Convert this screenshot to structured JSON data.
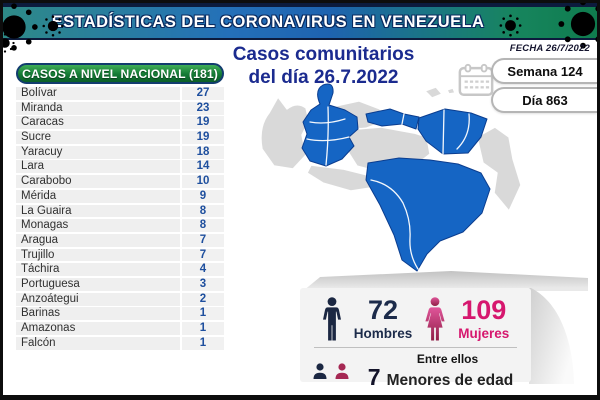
{
  "header": {
    "title": "ESTADÍSTICAS DEL CORONAVIRUS EN VENEZUELA",
    "date_label": "FECHA 26/7/2022"
  },
  "main_title": {
    "line1": "Casos comunitarios",
    "line2": "del día 26.7.2022"
  },
  "side": {
    "week": "Semana 124",
    "day": "Día 863"
  },
  "table": {
    "header": "CASOS A NIVEL NACIONAL  (181)",
    "total": 181,
    "rows": [
      {
        "state": "Bolívar",
        "cases": "27"
      },
      {
        "state": "Miranda",
        "cases": "23"
      },
      {
        "state": "Caracas",
        "cases": "19"
      },
      {
        "state": "Sucre",
        "cases": "19"
      },
      {
        "state": "Yaracuy",
        "cases": "18"
      },
      {
        "state": "Lara",
        "cases": "14"
      },
      {
        "state": "Carabobo",
        "cases": "10"
      },
      {
        "state": "Mérida",
        "cases": "9"
      },
      {
        "state": "La Guaira",
        "cases": "8"
      },
      {
        "state": "Monagas",
        "cases": "8"
      },
      {
        "state": "Aragua",
        "cases": "7"
      },
      {
        "state": "Trujillo",
        "cases": "7"
      },
      {
        "state": "Táchira",
        "cases": "4"
      },
      {
        "state": "Portuguesa",
        "cases": "3"
      },
      {
        "state": "Anzoátegui",
        "cases": "2"
      },
      {
        "state": "Barinas",
        "cases": "1"
      },
      {
        "state": "Amazonas",
        "cases": "1"
      },
      {
        "state": "Falcón",
        "cases": "1"
      }
    ]
  },
  "stats": {
    "men": {
      "value": "72",
      "label": "Hombres"
    },
    "women": {
      "value": "109",
      "label": "Mujeres"
    },
    "minors": {
      "intro": "Entre ellos",
      "value": "7",
      "label": "Menores de edad"
    }
  },
  "colors": {
    "map_blue": "#1565c4",
    "map_gray": "#d9d9d9",
    "men_navy": "#1c2b4a",
    "women_pink": "#d6176e",
    "table_green": "#147a35",
    "title_blue": "#1b2b8f",
    "virus_red": "#cf1f1f"
  },
  "chart_data": {
    "type": "table",
    "title": "Casos comunitarios del día 26.7.2022",
    "subtitle": "CASOS A NIVEL NACIONAL",
    "date": "26/7/2022",
    "week": 124,
    "day": 863,
    "total_cases": 181,
    "categories": [
      "Bolívar",
      "Miranda",
      "Caracas",
      "Sucre",
      "Yaracuy",
      "Lara",
      "Carabobo",
      "Mérida",
      "La Guaira",
      "Monagas",
      "Aragua",
      "Trujillo",
      "Táchira",
      "Portuguesa",
      "Anzoátegui",
      "Barinas",
      "Amazonas",
      "Falcón"
    ],
    "values": [
      27,
      23,
      19,
      19,
      18,
      14,
      10,
      9,
      8,
      8,
      7,
      7,
      4,
      3,
      2,
      1,
      1,
      1
    ],
    "demographics": {
      "hombres": 72,
      "mujeres": 109,
      "menores_de_edad": 7
    }
  }
}
